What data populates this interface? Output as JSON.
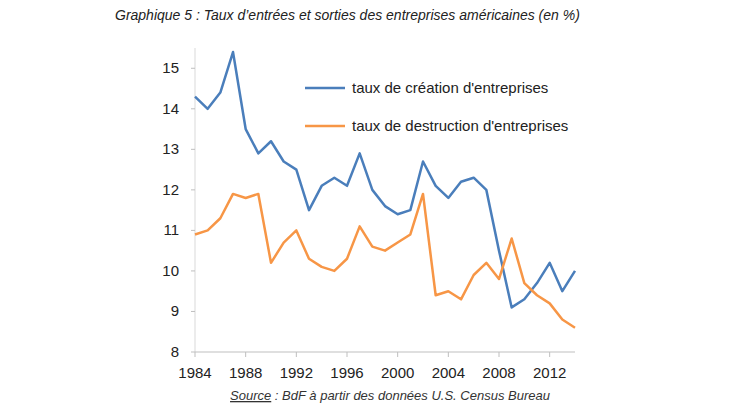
{
  "chart_data": {
    "type": "line",
    "title": "Graphique 5 : Taux d’entrées et sorties des entreprises américaines (en %)",
    "source_label": "Source",
    "source": ": BdF à partir des données U.S. Census Bureau",
    "x": [
      1984,
      1985,
      1986,
      1987,
      1988,
      1989,
      1990,
      1991,
      1992,
      1993,
      1994,
      1995,
      1996,
      1997,
      1998,
      1999,
      2000,
      2001,
      2002,
      2003,
      2004,
      2005,
      2006,
      2007,
      2008,
      2009,
      2010,
      2011,
      2012,
      2013,
      2014
    ],
    "series": [
      {
        "name": "taux de création d'entreprises",
        "color": "#4a7ebb",
        "values": [
          14.3,
          14.0,
          14.4,
          15.4,
          13.5,
          12.9,
          13.2,
          12.7,
          12.5,
          11.5,
          12.1,
          12.3,
          12.1,
          12.9,
          12.0,
          11.6,
          11.4,
          11.5,
          12.7,
          12.1,
          11.8,
          12.2,
          12.3,
          12.0,
          10.5,
          9.1,
          9.3,
          9.7,
          10.2,
          9.5,
          10.0
        ]
      },
      {
        "name": "taux de destruction d'entreprises",
        "color": "#f79646",
        "values": [
          10.9,
          11.0,
          11.3,
          11.9,
          11.8,
          11.9,
          10.2,
          10.7,
          11.0,
          10.3,
          10.1,
          10.0,
          10.3,
          11.1,
          10.6,
          10.5,
          10.7,
          10.9,
          11.9,
          9.4,
          9.5,
          9.3,
          9.9,
          10.2,
          9.8,
          10.8,
          9.7,
          9.4,
          9.2,
          8.8,
          8.6
        ]
      }
    ],
    "xlim": [
      1984,
      2014
    ],
    "xticks": [
      1984,
      1988,
      1992,
      1996,
      2000,
      2004,
      2008,
      2012
    ],
    "ylim": [
      8,
      15.5
    ],
    "yticks": [
      8,
      9,
      10,
      11,
      12,
      13,
      14,
      15
    ],
    "grid": false,
    "legend": "top-right"
  }
}
